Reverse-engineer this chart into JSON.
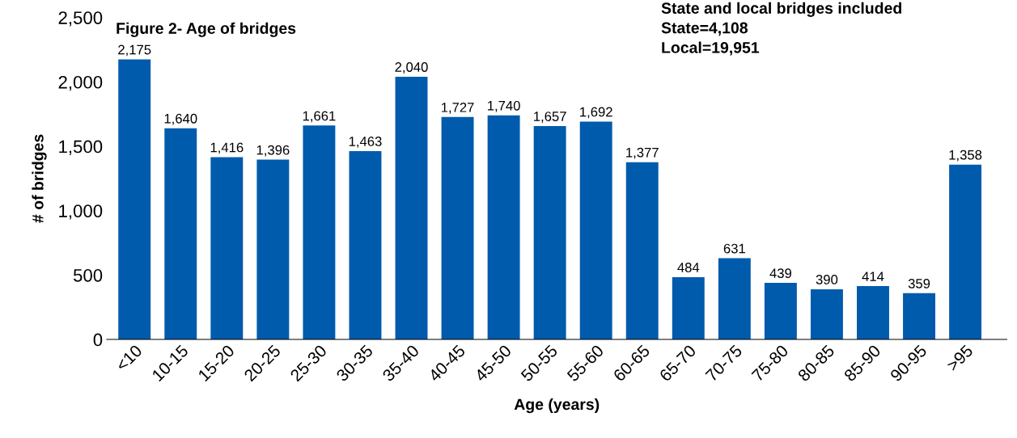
{
  "chart_data": {
    "type": "bar",
    "title": "Figure 2- Age of bridges",
    "xlabel": "Age (years)",
    "ylabel": "# of bridges",
    "categories": [
      "<10",
      "10-15",
      "15-20",
      "20-25",
      "25-30",
      "30-35",
      "35-40",
      "40-45",
      "45-50",
      "50-55",
      "55-60",
      "60-65",
      "65-70",
      "70-75",
      "75-80",
      "80-85",
      "85-90",
      "90-95",
      ">95"
    ],
    "values": [
      2175,
      1640,
      1416,
      1396,
      1661,
      1463,
      2040,
      1727,
      1740,
      1657,
      1692,
      1377,
      484,
      631,
      439,
      390,
      414,
      359,
      1358
    ],
    "color": "#005bac",
    "ylim": [
      0,
      2500
    ],
    "yticks": [
      0,
      500,
      {
        "value": 1000,
        "label": "1,000"
      },
      {
        "value": 1500,
        "label": "1,500"
      },
      {
        "value": 2000,
        "label": "2,000"
      },
      {
        "value": 2500,
        "label": "2,500"
      }
    ],
    "grid": false,
    "legend": false,
    "value_labels": [
      "2,175",
      "1,640",
      "1,416",
      "1,396",
      "1,661",
      "1,463",
      "2,040",
      "1,727",
      "1,740",
      "1,657",
      "1,692",
      "1,377",
      "484",
      "631",
      "439",
      "390",
      "414",
      "359",
      "1,358"
    ],
    "annotations": [
      "State and local bridges included",
      "State=4,108",
      "Local=19,951"
    ]
  }
}
